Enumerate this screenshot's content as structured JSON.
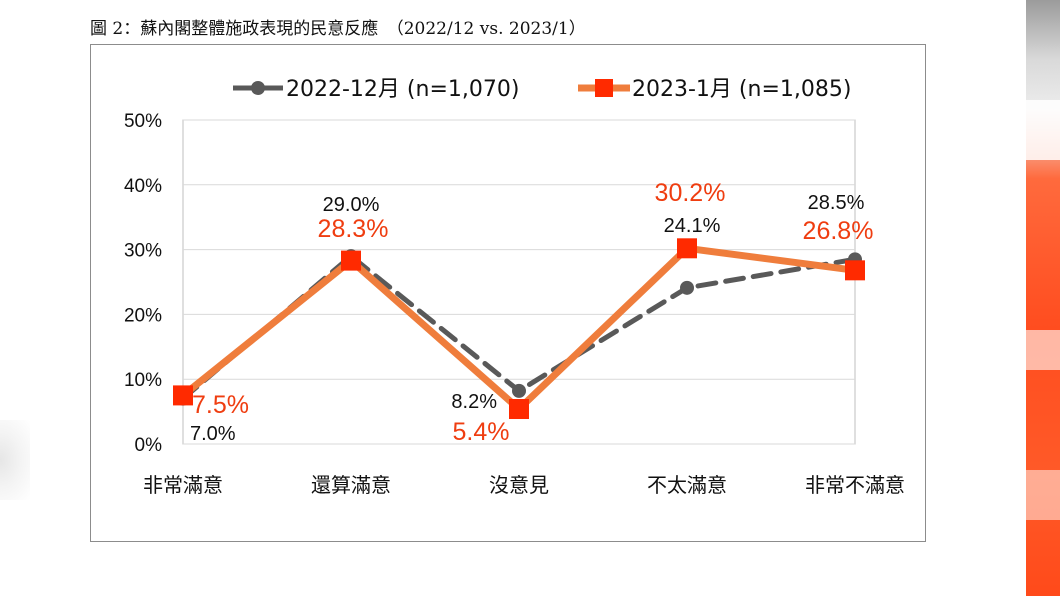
{
  "caption": "圖 2：蘇內閣整體施政表現的民意反應　（2022/12 vs. 2023/1）",
  "colors": {
    "series_dec": "#595959",
    "series_jan": "#ef7d3c",
    "marker_jan": "#ff2a00",
    "label_jan": "#ef3d10",
    "grid": "#d9d9d9",
    "axis_text": "#111111"
  },
  "chart_data": {
    "type": "line",
    "categories": [
      "非常滿意",
      "還算滿意",
      "沒意見",
      "不太滿意",
      "非常不滿意"
    ],
    "ylim": [
      0,
      50
    ],
    "yticks": [
      "0%",
      "10%",
      "20%",
      "30%",
      "40%",
      "50%"
    ],
    "grid": true,
    "legend_position": "top",
    "series": [
      {
        "name": "2022-12月  (n=1,070)",
        "values": [
          7.0,
          29.0,
          8.2,
          24.1,
          28.5
        ],
        "labels": [
          "7.0%",
          "29.0%",
          "8.2%",
          "24.1%",
          "28.5%"
        ],
        "style": "dashed",
        "marker": "circle"
      },
      {
        "name": "2023-1月  (n=1,085)",
        "values": [
          7.5,
          28.3,
          5.4,
          30.2,
          26.8
        ],
        "labels": [
          "7.5%",
          "28.3%",
          "5.4%",
          "30.2%",
          "26.8%"
        ],
        "style": "solid",
        "marker": "square"
      }
    ]
  }
}
